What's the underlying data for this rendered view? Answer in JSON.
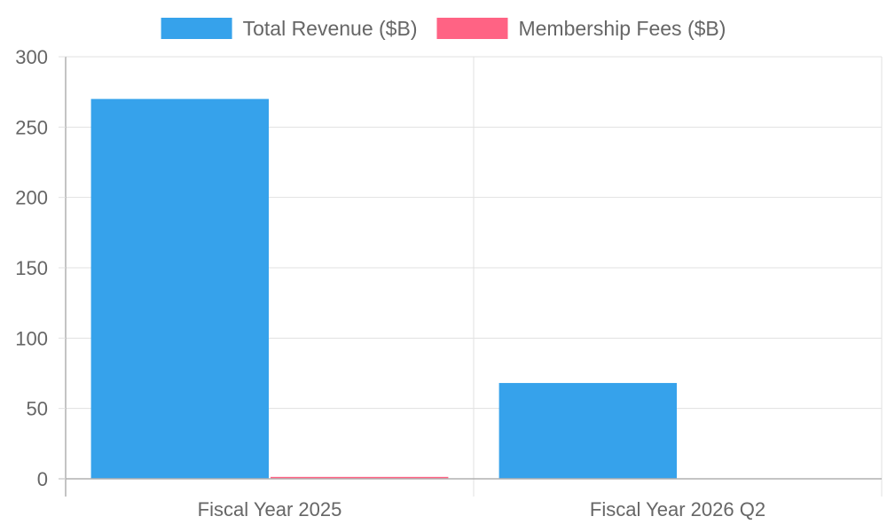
{
  "chart_data": {
    "type": "bar",
    "categories": [
      "Fiscal Year 2025",
      "Fiscal Year 2026 Q2"
    ],
    "series": [
      {
        "name": "Total Revenue ($B)",
        "values": [
          270,
          68.1
        ],
        "color": "#36a2eb"
      },
      {
        "name": "Membership Fees ($B)",
        "values": [
          1.35,
          0
        ],
        "color": "#ff6384"
      }
    ],
    "title": "",
    "xlabel": "",
    "ylabel": "",
    "ylim": [
      0,
      300
    ],
    "yticks": [
      0,
      50,
      100,
      150,
      200,
      250,
      300
    ],
    "grid": true,
    "legend_position": "top-center"
  }
}
